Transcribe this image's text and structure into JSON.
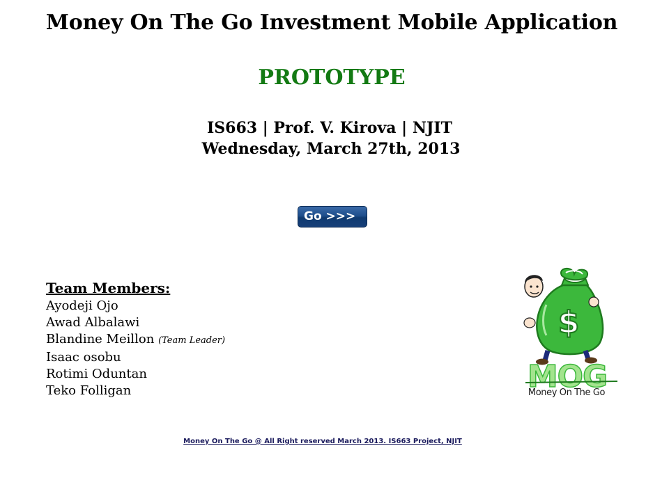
{
  "header": {
    "title": "Money On The Go Investment Mobile Application",
    "subtitle": "PROTOTYPE",
    "course_line": "IS663 | Prof. V. Kirova | NJIT",
    "date_line": "Wednesday, March 27th, 2013"
  },
  "go_button": {
    "label": "Go >>>"
  },
  "team": {
    "heading": "Team Members:",
    "members": [
      {
        "name": "Ayodeji Ojo",
        "role": ""
      },
      {
        "name": "Awad Albalawi",
        "role": ""
      },
      {
        "name": "Blandine Meillon",
        "role": "(Team Leader)"
      },
      {
        "name": "Isaac osobu",
        "role": ""
      },
      {
        "name": "Rotimi Oduntan",
        "role": ""
      },
      {
        "name": "Teko Folligan",
        "role": ""
      }
    ]
  },
  "logo": {
    "lettering": "MOG",
    "caption": "Money On The Go",
    "icon": "money-bag-mascot-icon",
    "colors": {
      "bag": "#3cb83c",
      "bag_dark": "#1e7a1e",
      "lettering": "#7ed36a",
      "dollar": "#1e7a1e"
    }
  },
  "footer": {
    "text": "Money On The Go @ All Right reserved March 2013. IS663 Project, NJIT"
  },
  "colors": {
    "subtitle": "#137a13",
    "button_top": "#3a6aa8",
    "button_bottom": "#0f3a70",
    "footer_link": "#1a1a5c"
  }
}
